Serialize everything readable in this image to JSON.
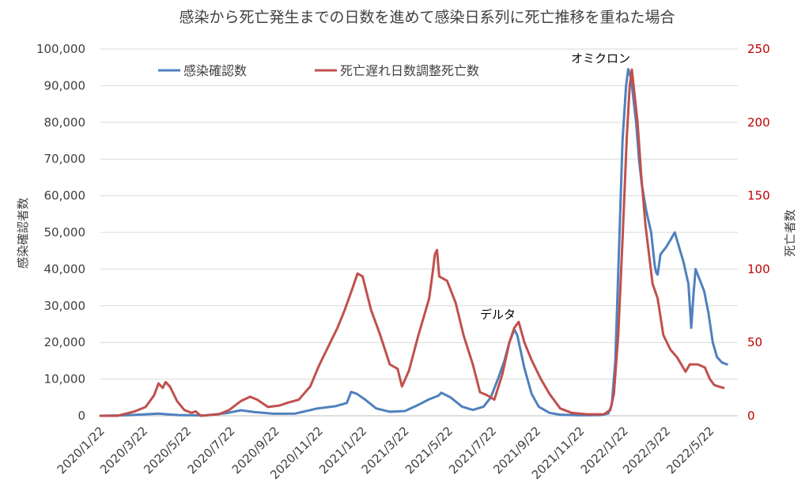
{
  "chart_data": {
    "type": "line",
    "title": "感染から死亡発生までの日数を進めて感染日系列に死亡推移を重ねた場合",
    "xlabel": "",
    "ylabel": "感染確認者数",
    "y2label": "死亡者数",
    "ylim": [
      0,
      100000
    ],
    "y2lim": [
      0,
      250
    ],
    "y_ticks": [
      "0",
      "10,000",
      "20,000",
      "30,000",
      "40,000",
      "50,000",
      "60,000",
      "70,000",
      "80,000",
      "90,000",
      "100,000"
    ],
    "y2_ticks": [
      "0",
      "50",
      "100",
      "150",
      "200",
      "250"
    ],
    "x_ticks": [
      "2020/1/22",
      "2020/3/22",
      "2020/5/22",
      "2020/7/22",
      "2020/9/22",
      "2020/11/22",
      "2021/1/22",
      "2021/3/22",
      "2021/5/22",
      "2021/7/22",
      "2021/9/22",
      "2021/11/22",
      "2022/1/22",
      "2022/3/22",
      "2022/5/22"
    ],
    "grid": "horizontal",
    "legend_position": "top-left",
    "annotations": [
      {
        "text": "デルタ",
        "x": "2021/8/16",
        "y": 27500
      },
      {
        "text": "オミクロン",
        "x": "2022/1/12",
        "y": 96500
      }
    ],
    "series": [
      {
        "name": "感染確認数",
        "axis": "left",
        "color": "#4f81bd",
        "points": [
          [
            "2020/1/22",
            0
          ],
          [
            "2020/3/1",
            150
          ],
          [
            "2020/4/12",
            600
          ],
          [
            "2020/5/10",
            200
          ],
          [
            "2020/6/15",
            80
          ],
          [
            "2020/7/15",
            700
          ],
          [
            "2020/8/5",
            1500
          ],
          [
            "2020/8/25",
            1000
          ],
          [
            "2020/9/20",
            550
          ],
          [
            "2020/10/20",
            600
          ],
          [
            "2020/11/20",
            2000
          ],
          [
            "2020/12/15",
            2600
          ],
          [
            "2020/12/31",
            3500
          ],
          [
            "2021/1/6",
            6500
          ],
          [
            "2021/1/14",
            6000
          ],
          [
            "2021/1/25",
            4500
          ],
          [
            "2021/2/10",
            2000
          ],
          [
            "2021/3/1",
            1100
          ],
          [
            "2021/3/22",
            1300
          ],
          [
            "2021/4/10",
            3000
          ],
          [
            "2021/4/25",
            4500
          ],
          [
            "2021/5/8",
            5500
          ],
          [
            "2021/5/12",
            6300
          ],
          [
            "2021/5/25",
            5000
          ],
          [
            "2021/6/10",
            2500
          ],
          [
            "2021/6/25",
            1600
          ],
          [
            "2021/7/10",
            2500
          ],
          [
            "2021/7/20",
            5000
          ],
          [
            "2021/7/30",
            10000
          ],
          [
            "2021/8/8",
            15000
          ],
          [
            "2021/8/15",
            20000
          ],
          [
            "2021/8/22",
            23500
          ],
          [
            "2021/8/26",
            22000
          ],
          [
            "2021/9/5",
            13000
          ],
          [
            "2021/9/15",
            6000
          ],
          [
            "2021/9/25",
            2500
          ],
          [
            "2021/10/10",
            800
          ],
          [
            "2021/10/25",
            300
          ],
          [
            "2021/11/22",
            130
          ],
          [
            "2021/12/20",
            200
          ],
          [
            "2021/12/31",
            600
          ],
          [
            "2022/1/5",
            3000
          ],
          [
            "2022/1/10",
            15000
          ],
          [
            "2022/1/15",
            45000
          ],
          [
            "2022/1/20",
            75000
          ],
          [
            "2022/1/25",
            90000
          ],
          [
            "2022/1/28",
            94500
          ],
          [
            "2022/2/1",
            92000
          ],
          [
            "2022/2/5",
            85000
          ],
          [
            "2022/2/8",
            80000
          ],
          [
            "2022/2/12",
            70000
          ],
          [
            "2022/2/16",
            63000
          ],
          [
            "2022/2/22",
            56000
          ],
          [
            "2022/3/1",
            50000
          ],
          [
            "2022/3/6",
            41000
          ],
          [
            "2022/3/8",
            39000
          ],
          [
            "2022/3/10",
            38500
          ],
          [
            "2022/3/14",
            44000
          ],
          [
            "2022/3/22",
            46000
          ],
          [
            "2022/3/28",
            48000
          ],
          [
            "2022/4/3",
            50000
          ],
          [
            "2022/4/9",
            46000
          ],
          [
            "2022/4/15",
            42000
          ],
          [
            "2022/4/22",
            36000
          ],
          [
            "2022/4/26",
            24000
          ],
          [
            "2022/4/29",
            33000
          ],
          [
            "2022/5/2",
            40000
          ],
          [
            "2022/5/8",
            37000
          ],
          [
            "2022/5/14",
            34000
          ],
          [
            "2022/5/20",
            28000
          ],
          [
            "2022/5/26",
            20000
          ],
          [
            "2022/6/1",
            16000
          ],
          [
            "2022/6/8",
            14500
          ],
          [
            "2022/6/15",
            14000
          ]
        ]
      },
      {
        "name": "死亡遅れ日数調整死亡数",
        "axis": "right",
        "color": "#c0504d",
        "points": [
          [
            "2020/1/22",
            0
          ],
          [
            "2020/2/15",
            0
          ],
          [
            "2020/3/10",
            3
          ],
          [
            "2020/3/25",
            6
          ],
          [
            "2020/4/6",
            14
          ],
          [
            "2020/4/12",
            22
          ],
          [
            "2020/4/18",
            19
          ],
          [
            "2020/4/22",
            23
          ],
          [
            "2020/4/28",
            20
          ],
          [
            "2020/5/8",
            10
          ],
          [
            "2020/5/18",
            4
          ],
          [
            "2020/5/28",
            2
          ],
          [
            "2020/6/3",
            3
          ],
          [
            "2020/6/10",
            0
          ],
          [
            "2020/7/5",
            1
          ],
          [
            "2020/7/20",
            4
          ],
          [
            "2020/8/5",
            10
          ],
          [
            "2020/8/18",
            13
          ],
          [
            "2020/8/28",
            11
          ],
          [
            "2020/9/12",
            6
          ],
          [
            "2020/9/28",
            7
          ],
          [
            "2020/10/10",
            9
          ],
          [
            "2020/10/25",
            11
          ],
          [
            "2020/11/10",
            20
          ],
          [
            "2020/11/22",
            34
          ],
          [
            "2020/12/10",
            52
          ],
          [
            "2020/12/18",
            60
          ],
          [
            "2020/12/28",
            72
          ],
          [
            "2021/1/8",
            87
          ],
          [
            "2021/1/15",
            97
          ],
          [
            "2021/1/22",
            95
          ],
          [
            "2021/2/3",
            72
          ],
          [
            "2021/2/15",
            56
          ],
          [
            "2021/3/1",
            35
          ],
          [
            "2021/3/12",
            32
          ],
          [
            "2021/3/18",
            20
          ],
          [
            "2021/3/28",
            31
          ],
          [
            "2021/4/10",
            55
          ],
          [
            "2021/4/25",
            80
          ],
          [
            "2021/4/30",
            98
          ],
          [
            "2021/5/3",
            110
          ],
          [
            "2021/5/6",
            113
          ],
          [
            "2021/5/9",
            95
          ],
          [
            "2021/5/20",
            92
          ],
          [
            "2021/6/1",
            77
          ],
          [
            "2021/6/12",
            55
          ],
          [
            "2021/6/25",
            35
          ],
          [
            "2021/7/5",
            16
          ],
          [
            "2021/7/15",
            14
          ],
          [
            "2021/7/25",
            11
          ],
          [
            "2021/8/5",
            28
          ],
          [
            "2021/8/15",
            50
          ],
          [
            "2021/8/22",
            60
          ],
          [
            "2021/8/28",
            64
          ],
          [
            "2021/9/5",
            50
          ],
          [
            "2021/9/15",
            38
          ],
          [
            "2021/9/28",
            25
          ],
          [
            "2021/10/10",
            15
          ],
          [
            "2021/10/25",
            5
          ],
          [
            "2021/11/10",
            2
          ],
          [
            "2021/12/1",
            1
          ],
          [
            "2021/12/25",
            1
          ],
          [
            "2022/1/3",
            4
          ],
          [
            "2022/1/8",
            15
          ],
          [
            "2022/1/14",
            55
          ],
          [
            "2022/1/20",
            120
          ],
          [
            "2022/1/26",
            190
          ],
          [
            "2022/1/30",
            225
          ],
          [
            "2022/2/2",
            236
          ],
          [
            "2022/2/6",
            218
          ],
          [
            "2022/2/10",
            200
          ],
          [
            "2022/2/15",
            165
          ],
          [
            "2022/2/21",
            130
          ],
          [
            "2022/2/26",
            110
          ],
          [
            "2022/3/3",
            90
          ],
          [
            "2022/3/10",
            80
          ],
          [
            "2022/3/18",
            55
          ],
          [
            "2022/3/28",
            45
          ],
          [
            "2022/4/6",
            40
          ],
          [
            "2022/4/12",
            35
          ],
          [
            "2022/4/18",
            30
          ],
          [
            "2022/4/24",
            35
          ],
          [
            "2022/5/5",
            35
          ],
          [
            "2022/5/15",
            33
          ],
          [
            "2022/5/22",
            25
          ],
          [
            "2022/5/28",
            21
          ],
          [
            "2022/6/3",
            20
          ],
          [
            "2022/6/10",
            19
          ]
        ]
      }
    ]
  }
}
